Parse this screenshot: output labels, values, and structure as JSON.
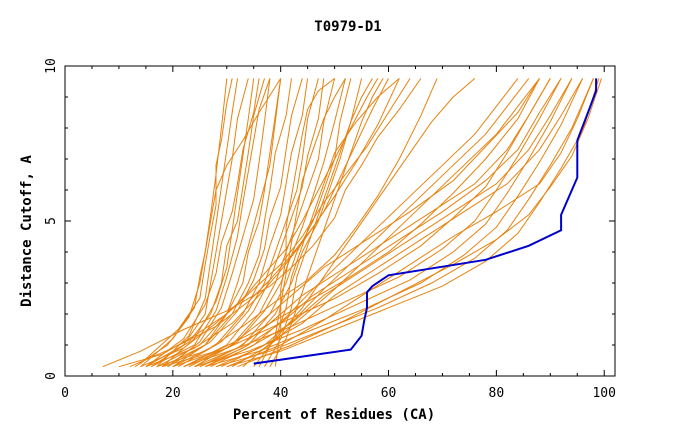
{
  "chart_data": {
    "type": "line",
    "title": "T0979-D1",
    "xlabel": "Percent of Residues (CA)",
    "ylabel": "Distance Cutoff, A",
    "xlim": [
      0,
      102
    ],
    "ylim": [
      0,
      10
    ],
    "xticks": [
      "0",
      "20",
      "40",
      "60",
      "80",
      "100"
    ],
    "yticks": [
      "0",
      "5",
      "10"
    ],
    "colors": {
      "background_models": "#e8820e",
      "highlight": "#0000cc",
      "axes": "#000000"
    },
    "highlight_series": {
      "x": [
        35,
        53,
        55,
        55.5,
        56,
        56,
        57,
        60,
        78,
        86,
        92,
        92,
        95,
        95,
        97,
        98.5,
        98.5
      ],
      "y": [
        0.4,
        0.85,
        1.3,
        1.8,
        2.2,
        2.7,
        2.9,
        3.25,
        3.75,
        4.2,
        4.7,
        5.2,
        6.4,
        7.6,
        8.5,
        9.2,
        9.6
      ]
    },
    "background_series": [
      {
        "x": [
          7,
          14,
          22,
          30,
          38,
          42,
          46,
          50,
          52,
          55,
          58,
          62,
          66
        ],
        "y": [
          0.3,
          0.8,
          1.5,
          2.1,
          2.9,
          3.5,
          4.2,
          5.1,
          6.0,
          6.8,
          7.7,
          8.6,
          9.6
        ]
      },
      {
        "x": [
          10,
          18,
          24,
          30,
          35,
          40,
          44,
          48,
          52,
          56,
          60,
          64
        ],
        "y": [
          0.3,
          0.7,
          1.3,
          2.0,
          2.8,
          3.6,
          4.5,
          5.6,
          6.5,
          7.4,
          8.5,
          9.6
        ]
      },
      {
        "x": [
          12,
          20,
          28,
          34,
          38,
          42,
          46,
          50,
          54,
          58,
          62
        ],
        "y": [
          0.3,
          0.9,
          1.6,
          2.4,
          3.1,
          3.9,
          4.8,
          5.8,
          6.9,
          8.1,
          9.6
        ]
      },
      {
        "x": [
          13,
          19,
          23,
          25,
          26,
          27,
          28,
          30,
          33,
          36,
          40
        ],
        "y": [
          0.3,
          1.0,
          1.9,
          3.0,
          4.0,
          5.0,
          6.0,
          6.8,
          7.6,
          8.5,
          9.6
        ]
      },
      {
        "x": [
          14,
          20,
          24,
          25,
          26,
          27,
          28,
          29,
          30
        ],
        "y": [
          0.3,
          1.2,
          2.2,
          3.2,
          4.0,
          5.2,
          6.5,
          8.0,
          9.6
        ]
      },
      {
        "x": [
          14,
          21,
          25,
          26,
          27,
          28,
          28,
          29,
          30,
          31
        ],
        "y": [
          0.4,
          1.5,
          2.5,
          3.6,
          4.6,
          5.5,
          6.8,
          7.6,
          8.8,
          9.6
        ]
      },
      {
        "x": [
          15,
          22,
          26,
          27,
          28,
          29,
          30,
          31,
          32,
          34
        ],
        "y": [
          0.3,
          1.0,
          2.0,
          3.0,
          4.0,
          5.0,
          6.0,
          7.0,
          8.3,
          9.6
        ]
      },
      {
        "x": [
          15,
          22,
          26,
          28,
          29,
          31,
          32,
          33,
          35,
          36
        ],
        "y": [
          0.3,
          1.2,
          2.3,
          3.3,
          4.3,
          5.3,
          6.2,
          7.3,
          8.5,
          9.6
        ]
      },
      {
        "x": [
          16,
          23,
          27,
          29,
          30,
          32,
          33,
          34,
          35,
          37
        ],
        "y": [
          0.3,
          1.1,
          2.0,
          3.0,
          4.2,
          5.0,
          6.1,
          7.2,
          8.4,
          9.6
        ]
      },
      {
        "x": [
          16,
          24,
          28,
          30,
          32,
          33,
          34,
          35,
          36,
          38
        ],
        "y": [
          0.3,
          1.0,
          2.1,
          3.2,
          4.5,
          5.6,
          6.6,
          7.6,
          8.6,
          9.6
        ]
      },
      {
        "x": [
          17,
          25,
          30,
          33,
          34,
          36,
          37,
          38,
          39,
          40
        ],
        "y": [
          0.3,
          1.0,
          2.0,
          3.0,
          4.0,
          5.0,
          6.0,
          7.2,
          8.4,
          9.6
        ]
      },
      {
        "x": [
          18,
          26,
          31,
          34,
          36,
          37,
          38,
          39,
          41,
          42
        ],
        "y": [
          0.3,
          1.0,
          2.0,
          3.0,
          3.9,
          5.0,
          6.0,
          7.2,
          8.4,
          9.6
        ]
      },
      {
        "x": [
          19,
          27,
          32,
          35,
          37,
          38,
          40,
          41,
          42,
          44
        ],
        "y": [
          0.3,
          1.1,
          2.1,
          3.1,
          4.1,
          5.1,
          6.1,
          7.3,
          8.4,
          9.6
        ]
      },
      {
        "x": [
          20,
          28,
          33,
          36,
          38,
          40,
          41,
          42,
          44,
          45
        ],
        "y": [
          0.3,
          1.0,
          2.0,
          3.0,
          4.2,
          5.2,
          6.2,
          7.2,
          8.4,
          9.6
        ]
      },
      {
        "x": [
          21,
          29,
          34,
          37,
          39,
          41,
          43,
          44,
          45,
          47
        ],
        "y": [
          0.3,
          1.1,
          2.1,
          3.0,
          4.0,
          5.0,
          6.0,
          7.0,
          8.3,
          9.6
        ]
      },
      {
        "x": [
          22,
          30,
          35,
          38,
          40,
          42,
          44,
          45,
          47,
          48
        ],
        "y": [
          0.3,
          1.0,
          2.1,
          3.1,
          4.1,
          5.1,
          6.1,
          7.1,
          8.3,
          9.6
        ]
      },
      {
        "x": [
          23,
          31,
          36,
          39,
          41,
          43,
          45,
          47,
          48,
          50
        ],
        "y": [
          0.3,
          1.0,
          2.0,
          3.0,
          4.0,
          5.0,
          6.0,
          7.0,
          8.2,
          9.6
        ]
      },
      {
        "x": [
          24,
          32,
          37,
          40,
          42,
          44,
          46,
          48,
          50,
          52
        ],
        "y": [
          0.3,
          1.1,
          2.1,
          3.0,
          3.9,
          4.8,
          5.8,
          6.9,
          8.2,
          9.6
        ]
      },
      {
        "x": [
          25,
          33,
          38,
          41,
          43,
          46,
          48,
          50,
          51,
          53
        ],
        "y": [
          0.3,
          1.0,
          2.0,
          3.0,
          4.0,
          5.0,
          6.0,
          7.0,
          8.2,
          9.6
        ]
      },
      {
        "x": [
          26,
          34,
          39,
          42,
          44,
          47,
          49,
          51,
          53,
          55
        ],
        "y": [
          0.3,
          1.0,
          2.0,
          3.0,
          4.0,
          5.0,
          6.0,
          7.0,
          8.2,
          9.6
        ]
      },
      {
        "x": [
          14,
          22,
          28,
          33,
          37,
          41,
          44,
          47,
          50,
          53,
          56,
          58
        ],
        "y": [
          0.3,
          0.9,
          1.7,
          2.5,
          3.3,
          4.1,
          5.0,
          6.0,
          7.0,
          8.0,
          9.0,
          9.6
        ]
      },
      {
        "x": [
          15,
          24,
          31,
          36,
          40,
          44,
          48,
          51,
          54,
          57,
          60
        ],
        "y": [
          0.3,
          0.9,
          1.7,
          2.6,
          3.4,
          4.3,
          5.3,
          6.4,
          7.5,
          8.6,
          9.6
        ]
      },
      {
        "x": [
          17,
          26,
          33,
          39,
          45,
          50,
          54,
          58,
          62,
          66,
          69
        ],
        "y": [
          0.3,
          0.8,
          1.6,
          2.4,
          3.1,
          3.9,
          4.8,
          5.8,
          7.0,
          8.4,
          9.6
        ]
      },
      {
        "x": [
          18,
          28,
          36,
          44,
          52,
          60,
          66,
          72,
          78,
          84,
          88
        ],
        "y": [
          0.3,
          0.8,
          1.5,
          2.3,
          3.1,
          4.0,
          4.9,
          5.9,
          7.0,
          8.3,
          9.6
        ]
      },
      {
        "x": [
          20,
          30,
          40,
          50,
          58,
          66,
          72,
          78,
          82,
          86,
          90
        ],
        "y": [
          0.3,
          0.9,
          1.7,
          2.5,
          3.3,
          4.2,
          5.1,
          6.1,
          7.2,
          8.4,
          9.6
        ]
      },
      {
        "x": [
          22,
          32,
          42,
          52,
          62,
          70,
          76,
          80,
          84,
          88,
          92
        ],
        "y": [
          0.3,
          0.9,
          1.6,
          2.4,
          3.2,
          4.1,
          5.0,
          6.0,
          7.1,
          8.3,
          9.6
        ]
      },
      {
        "x": [
          24,
          34,
          44,
          54,
          64,
          72,
          78,
          82,
          86,
          90,
          94
        ],
        "y": [
          0.3,
          0.8,
          1.5,
          2.3,
          3.1,
          4.0,
          4.9,
          5.9,
          7.0,
          8.2,
          9.6
        ]
      },
      {
        "x": [
          26,
          36,
          46,
          56,
          66,
          74,
          80,
          84,
          88,
          92,
          96
        ],
        "y": [
          0.3,
          0.8,
          1.5,
          2.2,
          3.0,
          3.9,
          4.8,
          5.8,
          6.9,
          8.1,
          9.6
        ]
      },
      {
        "x": [
          28,
          38,
          48,
          58,
          68,
          76,
          82,
          86,
          90,
          94,
          98
        ],
        "y": [
          0.3,
          0.8,
          1.5,
          2.2,
          3.0,
          3.8,
          4.7,
          5.7,
          6.8,
          8.0,
          9.6
        ]
      },
      {
        "x": [
          30,
          40,
          50,
          60,
          70,
          78,
          84,
          88,
          92,
          96,
          99
        ],
        "y": [
          0.3,
          0.8,
          1.5,
          2.2,
          2.9,
          3.7,
          4.6,
          5.6,
          6.7,
          7.9,
          9.6
        ]
      },
      {
        "x": [
          22,
          30,
          36,
          42,
          48,
          56,
          64,
          72,
          78,
          84,
          88
        ],
        "y": [
          0.3,
          0.9,
          1.7,
          2.6,
          3.5,
          4.4,
          5.3,
          6.3,
          7.4,
          8.5,
          9.6
        ]
      },
      {
        "x": [
          24,
          32,
          38,
          44,
          52,
          60,
          68,
          76,
          82,
          86,
          90
        ],
        "y": [
          0.3,
          0.9,
          1.7,
          2.6,
          3.5,
          4.4,
          5.3,
          6.2,
          7.3,
          8.4,
          9.6
        ]
      },
      {
        "x": [
          25,
          33,
          40,
          46,
          54,
          62,
          70,
          78,
          84,
          88,
          92
        ],
        "y": [
          0.3,
          0.9,
          1.7,
          2.6,
          3.5,
          4.4,
          5.3,
          6.3,
          7.3,
          8.5,
          9.6
        ]
      },
      {
        "x": [
          26,
          34,
          42,
          48,
          56,
          64,
          72,
          80,
          86,
          90,
          94
        ],
        "y": [
          0.3,
          0.9,
          1.7,
          2.6,
          3.5,
          4.4,
          5.3,
          6.2,
          7.3,
          8.4,
          9.6
        ]
      },
      {
        "x": [
          28,
          36,
          44,
          50,
          58,
          66,
          74,
          82,
          88,
          92,
          96
        ],
        "y": [
          0.3,
          0.9,
          1.7,
          2.6,
          3.5,
          4.4,
          5.3,
          6.2,
          7.3,
          8.4,
          9.6
        ]
      },
      {
        "x": [
          30,
          40,
          48,
          56,
          64,
          72,
          80,
          88,
          92,
          95,
          98
        ],
        "y": [
          0.3,
          1.0,
          1.8,
          2.7,
          3.6,
          4.5,
          5.3,
          6.2,
          7.2,
          8.3,
          9.6
        ]
      },
      {
        "x": [
          32,
          42,
          52,
          62,
          72,
          80,
          86,
          90,
          94,
          97,
          99.5
        ],
        "y": [
          0.3,
          1.0,
          1.8,
          2.7,
          3.6,
          4.4,
          5.2,
          6.1,
          7.1,
          8.3,
          9.6
        ]
      },
      {
        "x": [
          27,
          35,
          41,
          46,
          52,
          58,
          64,
          70,
          76,
          80,
          84
        ],
        "y": [
          0.3,
          1.0,
          1.9,
          2.8,
          3.8,
          4.8,
          5.8,
          6.8,
          7.8,
          8.7,
          9.6
        ]
      },
      {
        "x": [
          29,
          37,
          43,
          48,
          54,
          60,
          66,
          72,
          78,
          82,
          86
        ],
        "y": [
          0.3,
          1.0,
          1.9,
          2.8,
          3.8,
          4.8,
          5.8,
          6.8,
          7.8,
          8.7,
          9.6
        ]
      },
      {
        "x": [
          31,
          38,
          44,
          50,
          56,
          62,
          68,
          74,
          80,
          84,
          88
        ],
        "y": [
          0.3,
          1.0,
          1.9,
          2.8,
          3.8,
          4.8,
          5.8,
          6.8,
          7.8,
          8.7,
          9.6
        ]
      },
      {
        "x": [
          33,
          39,
          44,
          48,
          52,
          56,
          60,
          64,
          68,
          72,
          76
        ],
        "y": [
          0.3,
          1.2,
          2.2,
          3.2,
          4.2,
          5.2,
          6.2,
          7.2,
          8.2,
          9.0,
          9.6
        ]
      },
      {
        "x": [
          35,
          39,
          41,
          42,
          44,
          46,
          48,
          50,
          54,
          58,
          62
        ],
        "y": [
          0.3,
          1.2,
          2.2,
          3.2,
          4.2,
          5.2,
          6.2,
          7.2,
          8.2,
          9.0,
          9.6
        ]
      },
      {
        "x": [
          36,
          39,
          40,
          41,
          42,
          43,
          44,
          46,
          48,
          50,
          52
        ],
        "y": [
          0.3,
          1.3,
          2.3,
          3.3,
          4.3,
          5.3,
          6.3,
          7.3,
          8.3,
          9.0,
          9.6
        ]
      },
      {
        "x": [
          37,
          40,
          42,
          43,
          45,
          47,
          49,
          51,
          53,
          55,
          57
        ],
        "y": [
          0.3,
          1.2,
          2.2,
          3.2,
          4.2,
          5.2,
          6.2,
          7.2,
          8.2,
          9.0,
          9.6
        ]
      },
      {
        "x": [
          38,
          41,
          43,
          45,
          47,
          49,
          51,
          53,
          55,
          57,
          59
        ],
        "y": [
          0.3,
          1.2,
          2.2,
          3.2,
          4.2,
          5.2,
          6.2,
          7.2,
          8.2,
          9.0,
          9.6
        ]
      },
      {
        "x": [
          39,
          40,
          40,
          41,
          41,
          42,
          43,
          44,
          45,
          47,
          50
        ],
        "y": [
          0.3,
          1.5,
          2.8,
          3.8,
          4.8,
          5.8,
          6.8,
          7.8,
          8.6,
          9.2,
          9.6
        ]
      },
      {
        "x": [
          20,
          26,
          30,
          32,
          34,
          36,
          38,
          39,
          40
        ],
        "y": [
          0.3,
          1.0,
          2.0,
          3.0,
          4.2,
          5.5,
          6.8,
          8.2,
          9.6
        ]
      },
      {
        "x": [
          19,
          25,
          29,
          31,
          33,
          35,
          36,
          37,
          38
        ],
        "y": [
          0.3,
          1.1,
          2.2,
          3.3,
          4.5,
          5.7,
          6.9,
          8.2,
          9.6
        ]
      },
      {
        "x": [
          18,
          24,
          28,
          30,
          31,
          32,
          33,
          34,
          35
        ],
        "y": [
          0.3,
          1.2,
          2.4,
          3.5,
          4.7,
          5.9,
          7.1,
          8.3,
          9.6
        ]
      },
      {
        "x": [
          17,
          23,
          26,
          27,
          28,
          29,
          30,
          31,
          32
        ],
        "y": [
          0.3,
          1.3,
          2.5,
          3.7,
          4.9,
          6.1,
          7.3,
          8.5,
          9.6
        ]
      }
    ]
  }
}
